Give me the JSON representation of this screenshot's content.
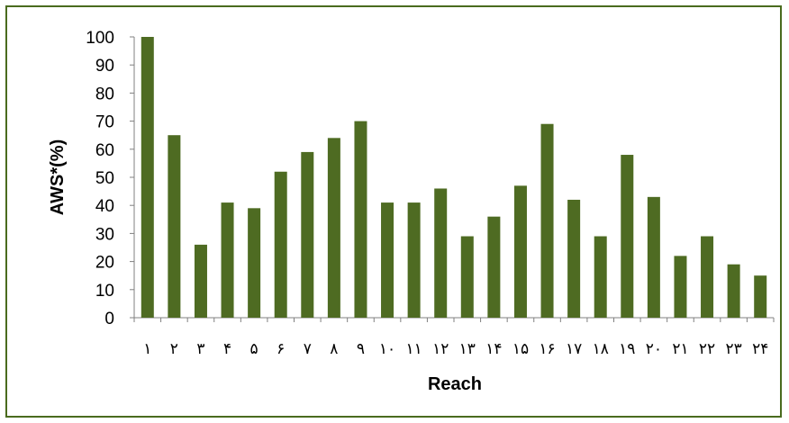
{
  "chart_data": {
    "type": "bar",
    "categories": [
      "١",
      "٢",
      "٣",
      "۴",
      "۵",
      "۶",
      "٧",
      "٨",
      "٩",
      "١٠",
      "١١",
      "١٢",
      "١٣",
      "١۴",
      "١۵",
      "١۶",
      "١٧",
      "١٨",
      "١٩",
      "٢٠",
      "٢١",
      "٢٢",
      "٢٣",
      "٢۴"
    ],
    "series": [
      {
        "values": [
          100,
          65,
          26,
          41,
          39,
          52,
          59,
          64,
          70,
          41,
          41,
          46,
          29,
          36,
          47,
          69,
          42,
          29,
          58,
          43,
          22,
          29,
          19,
          15
        ]
      }
    ],
    "xlabel": "Reach",
    "ylabel": "AWS*(%)",
    "ylim": [
      0,
      100
    ],
    "yticks": [
      0,
      10,
      20,
      30,
      40,
      50,
      60,
      70,
      80,
      90,
      100
    ],
    "bar_color": "#4e6b22",
    "grid": false,
    "legend": "none"
  }
}
